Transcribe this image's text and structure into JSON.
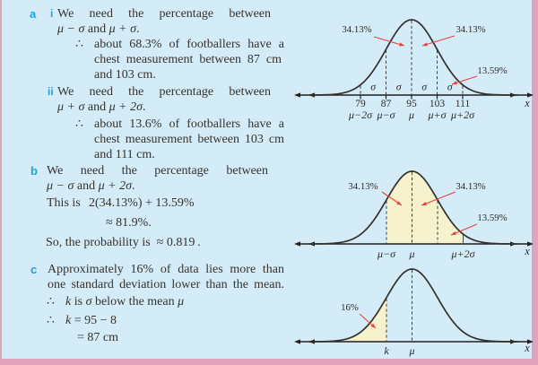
{
  "page": {
    "frame_color": "#e2a4ba",
    "panel_color": "#d4ecf8",
    "shade_color": "#f6f2ce",
    "arrow_color": "#e8423a",
    "marker_color": "#21a2dc",
    "text_color": "#37322e"
  },
  "solution": {
    "a": {
      "marker": "a",
      "i": {
        "marker": "i",
        "line1": "We need the percentage between",
        "line2": [
          {
            "t": "μ − σ",
            "i": true
          },
          {
            "t": " and ",
            "i": false
          },
          {
            "t": "μ + σ",
            "i": true
          },
          {
            "t": ".",
            "i": false
          }
        ],
        "therefore": "∴",
        "line3": "about 68.3% of footballers have a",
        "line4": "chest measurement between 87 cm",
        "line5": "and 103 cm."
      },
      "ii": {
        "marker": "ii",
        "line1": "We need the percentage between",
        "line2": [
          {
            "t": "μ + σ",
            "i": true
          },
          {
            "t": " and ",
            "i": false
          },
          {
            "t": "μ + 2σ",
            "i": true
          },
          {
            "t": ".",
            "i": false
          }
        ],
        "therefore": "∴",
        "line3": "about 13.6% of footballers have a",
        "line4": "chest measurement between 103 cm",
        "line5": "and 111 cm."
      }
    },
    "b": {
      "marker": "b",
      "line1": "We need the percentage between",
      "line2": [
        {
          "t": "μ − σ",
          "i": true
        },
        {
          "t": " and ",
          "i": false
        },
        {
          "t": "μ + 2σ",
          "i": true
        },
        {
          "t": ".",
          "i": false
        }
      ],
      "line3a": "This is",
      "line3b": "2(34.13%) + 13.59%",
      "line4": "≈ 81.9%.",
      "line5": "So, the probability is  ≈ 0.819 ."
    },
    "c": {
      "marker": "c",
      "line1": "Approximately 16% of data lies more than",
      "line2": "one standard deviation lower than the mean.",
      "therefore": "∴",
      "line3": [
        {
          "t": "k",
          "i": true
        },
        {
          "t": " is ",
          "i": false
        },
        {
          "t": "σ",
          "i": true
        },
        {
          "t": " below the mean ",
          "i": false
        },
        {
          "t": "μ",
          "i": true
        }
      ],
      "line4": [
        {
          "t": "k",
          "i": true
        },
        {
          "t": " = 95 − 8",
          "i": false
        }
      ],
      "line5": "= 87 cm"
    }
  },
  "chart_data": [
    {
      "type": "area",
      "description": "normal distribution curve of chest measurements with σ intervals",
      "mean": 95,
      "sd": 8,
      "x_axis_label": "x",
      "tick_values": [
        "79",
        "87",
        "95",
        "103",
        "111"
      ],
      "tick_symbols": [
        "μ−2σ",
        "μ−σ",
        "μ",
        "μ+σ",
        "μ+2σ"
      ],
      "interval_labels": [
        "σ",
        "σ",
        "σ",
        "σ"
      ],
      "annotations": [
        {
          "text": "34.13%",
          "region": "between μ−σ and μ"
        },
        {
          "text": "34.13%",
          "region": "between μ and μ+σ"
        },
        {
          "text": "13.59%",
          "region": "between μ+σ and μ+2σ"
        }
      ]
    },
    {
      "type": "area",
      "description": "normal curve with shaded region from μ−σ to μ+2σ",
      "x_axis_label": "x",
      "tick_symbols": [
        "μ−σ",
        "μ",
        "μ+2σ"
      ],
      "shaded_region": "μ−σ to μ+2σ",
      "annotations": [
        {
          "text": "34.13%",
          "region": "between μ−σ and μ"
        },
        {
          "text": "34.13%",
          "region": "between μ and μ+σ"
        },
        {
          "text": "13.59%",
          "region": "between μ+σ and μ+2σ"
        }
      ]
    },
    {
      "type": "area",
      "description": "normal curve with shaded lower tail below k",
      "x_axis_label": "x",
      "tick_symbols": [
        "k",
        "μ"
      ],
      "shaded_region": "x < k",
      "annotations": [
        {
          "text": "16%",
          "region": "below k"
        }
      ]
    }
  ]
}
